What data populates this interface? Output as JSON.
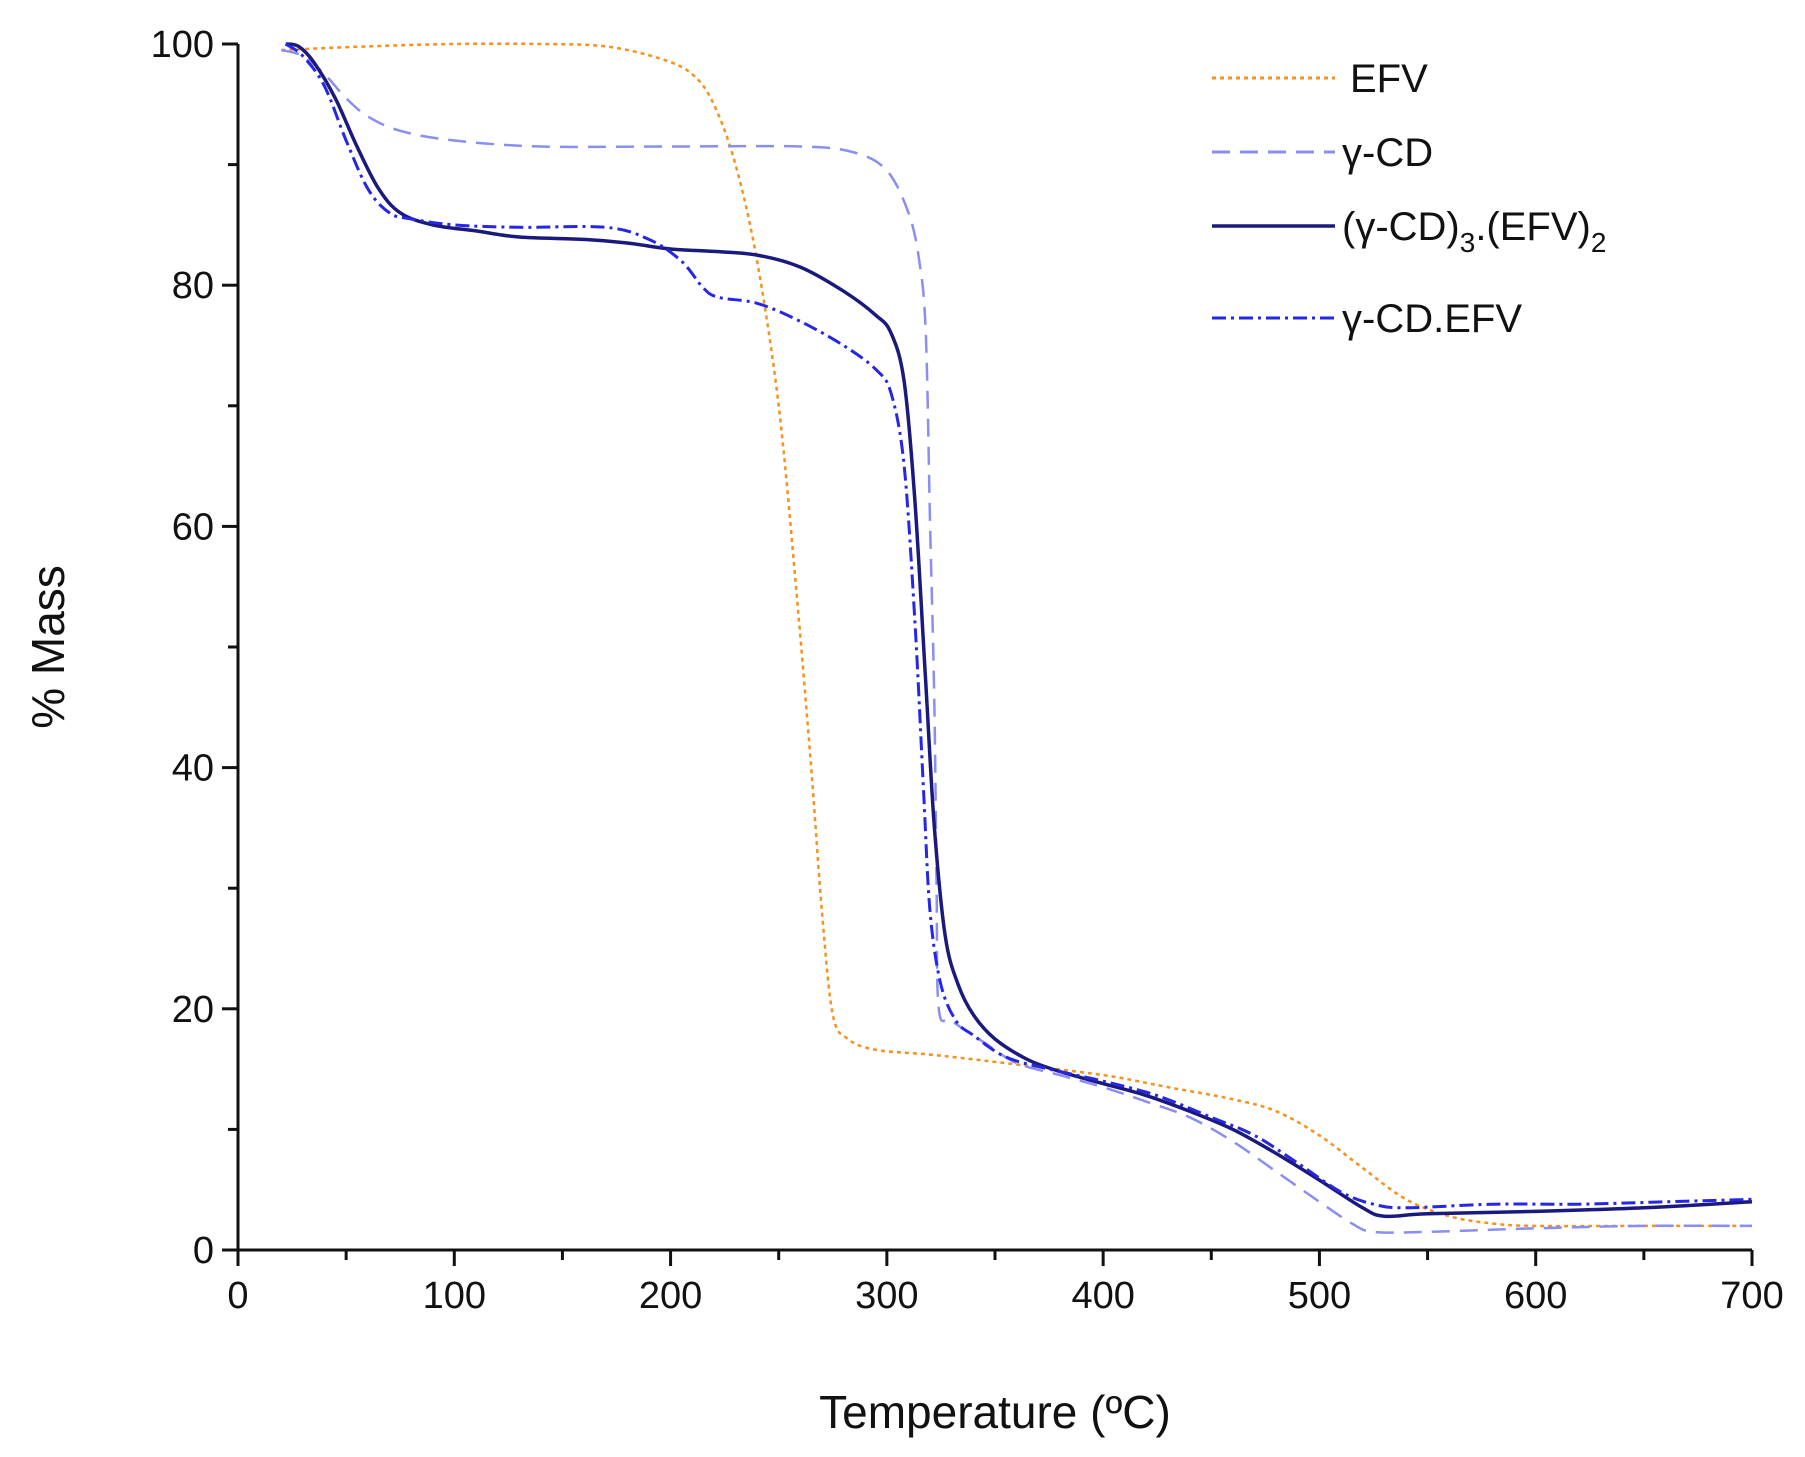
{
  "chart_data": {
    "type": "line",
    "title": "",
    "xlabel": "Temperature (ºC)",
    "ylabel": "% Mass",
    "xlim": [
      0,
      700
    ],
    "ylim": [
      0,
      100
    ],
    "x_ticks": [
      0,
      100,
      200,
      300,
      400,
      500,
      600,
      700
    ],
    "y_ticks": [
      0,
      20,
      40,
      60,
      80,
      100
    ],
    "grid": false,
    "legend_position": "top-right",
    "series": [
      {
        "name": "EFV",
        "legend_label": "EFV",
        "color": "#f5921e",
        "style": "dotted",
        "points": [
          [
            20,
            99.5
          ],
          [
            60,
            99.8
          ],
          [
            100,
            100
          ],
          [
            140,
            100
          ],
          [
            170,
            99.8
          ],
          [
            195,
            98.8
          ],
          [
            210,
            97.5
          ],
          [
            220,
            95
          ],
          [
            230,
            90
          ],
          [
            240,
            82
          ],
          [
            250,
            70
          ],
          [
            258,
            55
          ],
          [
            265,
            40
          ],
          [
            270,
            28
          ],
          [
            275,
            19.5
          ],
          [
            282,
            17.5
          ],
          [
            295,
            16.6
          ],
          [
            320,
            16.2
          ],
          [
            350,
            15.6
          ],
          [
            400,
            14.5
          ],
          [
            430,
            13.5
          ],
          [
            460,
            12.5
          ],
          [
            480,
            11.5
          ],
          [
            500,
            9.5
          ],
          [
            520,
            6.8
          ],
          [
            540,
            4.2
          ],
          [
            560,
            2.8
          ],
          [
            580,
            2.2
          ],
          [
            600,
            2.0
          ],
          [
            650,
            2.0
          ],
          [
            700,
            2.0
          ]
        ]
      },
      {
        "name": "γ-CD",
        "legend_label": "γ-CD",
        "color": "#8a8ef2",
        "style": "dashed",
        "points": [
          [
            20,
            99.5
          ],
          [
            30,
            99
          ],
          [
            40,
            97.5
          ],
          [
            50,
            95.5
          ],
          [
            60,
            94
          ],
          [
            75,
            92.8
          ],
          [
            100,
            92
          ],
          [
            140,
            91.5
          ],
          [
            200,
            91.5
          ],
          [
            260,
            91.5
          ],
          [
            285,
            91
          ],
          [
            300,
            89.5
          ],
          [
            310,
            86
          ],
          [
            315,
            82
          ],
          [
            318,
            76
          ],
          [
            320,
            60
          ],
          [
            322,
            45
          ],
          [
            323,
            30
          ],
          [
            324,
            20
          ],
          [
            330,
            19
          ],
          [
            345,
            17.2
          ],
          [
            360,
            15.5
          ],
          [
            380,
            14.5
          ],
          [
            400,
            13.5
          ],
          [
            420,
            12.3
          ],
          [
            440,
            11
          ],
          [
            460,
            9
          ],
          [
            480,
            6.5
          ],
          [
            500,
            4
          ],
          [
            515,
            2.2
          ],
          [
            525,
            1.5
          ],
          [
            550,
            1.5
          ],
          [
            600,
            1.8
          ],
          [
            650,
            2.0
          ],
          [
            700,
            2.0
          ]
        ]
      },
      {
        "name": "(γ-CD)3.(EFV)2",
        "legend_label": "(γ-CD)",
        "legend_sub1": "3",
        "legend_mid": ".(EFV)",
        "legend_sub2": "2",
        "color": "#1a1a7e",
        "style": "solid",
        "points": [
          [
            22,
            100
          ],
          [
            28,
            99.8
          ],
          [
            35,
            98.5
          ],
          [
            45,
            95.5
          ],
          [
            55,
            91.5
          ],
          [
            65,
            88
          ],
          [
            75,
            86
          ],
          [
            90,
            85
          ],
          [
            110,
            84.5
          ],
          [
            130,
            84
          ],
          [
            160,
            83.8
          ],
          [
            180,
            83.5
          ],
          [
            200,
            83
          ],
          [
            220,
            82.8
          ],
          [
            240,
            82.5
          ],
          [
            260,
            81.5
          ],
          [
            280,
            79.5
          ],
          [
            295,
            77.5
          ],
          [
            302,
            76
          ],
          [
            308,
            72
          ],
          [
            313,
            62
          ],
          [
            318,
            47
          ],
          [
            322,
            35
          ],
          [
            327,
            26
          ],
          [
            333,
            22
          ],
          [
            340,
            19.5
          ],
          [
            350,
            17.5
          ],
          [
            365,
            15.8
          ],
          [
            380,
            14.8
          ],
          [
            400,
            13.8
          ],
          [
            420,
            12.8
          ],
          [
            440,
            11.5
          ],
          [
            460,
            10
          ],
          [
            480,
            8
          ],
          [
            500,
            5.8
          ],
          [
            520,
            3.5
          ],
          [
            530,
            2.8
          ],
          [
            550,
            3
          ],
          [
            600,
            3.2
          ],
          [
            650,
            3.5
          ],
          [
            700,
            4
          ]
        ]
      },
      {
        "name": "γ-CD.EFV",
        "legend_label": "γ-CD.EFV",
        "color": "#2626e6",
        "style": "dashdot",
        "points": [
          [
            22,
            100
          ],
          [
            30,
            99
          ],
          [
            40,
            96.5
          ],
          [
            50,
            92
          ],
          [
            60,
            88
          ],
          [
            70,
            86
          ],
          [
            80,
            85.5
          ],
          [
            100,
            85
          ],
          [
            130,
            84.8
          ],
          [
            170,
            84.8
          ],
          [
            190,
            83.8
          ],
          [
            205,
            82
          ],
          [
            215,
            79.8
          ],
          [
            222,
            79
          ],
          [
            240,
            78.5
          ],
          [
            260,
            77
          ],
          [
            280,
            75
          ],
          [
            295,
            73
          ],
          [
            302,
            71
          ],
          [
            308,
            65
          ],
          [
            313,
            52
          ],
          [
            317,
            38
          ],
          [
            320,
            28
          ],
          [
            325,
            22
          ],
          [
            332,
            19
          ],
          [
            340,
            17.8
          ],
          [
            355,
            16
          ],
          [
            375,
            15
          ],
          [
            400,
            14
          ],
          [
            425,
            12.8
          ],
          [
            450,
            11
          ],
          [
            470,
            9.5
          ],
          [
            490,
            7.2
          ],
          [
            510,
            4.8
          ],
          [
            525,
            3.8
          ],
          [
            540,
            3.5
          ],
          [
            580,
            3.8
          ],
          [
            620,
            3.8
          ],
          [
            660,
            4
          ],
          [
            700,
            4.2
          ]
        ]
      }
    ]
  }
}
